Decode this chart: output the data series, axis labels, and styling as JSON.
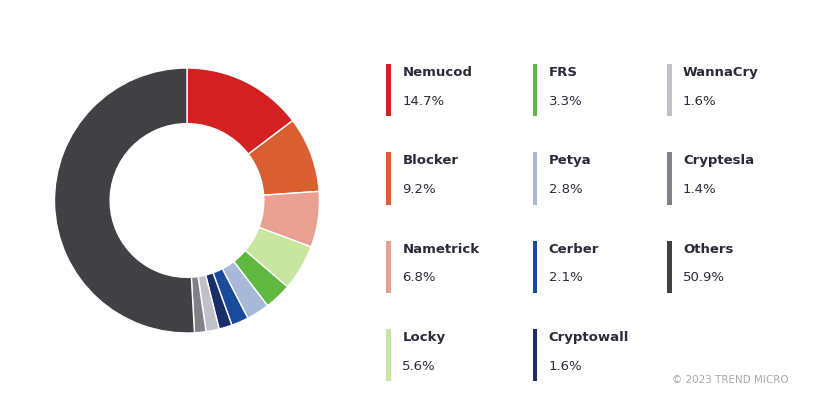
{
  "slices": [
    {
      "label": "Nemucod",
      "value": 14.7,
      "color": "#d42020"
    },
    {
      "label": "Blocker",
      "value": 9.2,
      "color": "#d95f30"
    },
    {
      "label": "Nametrick",
      "value": 6.8,
      "color": "#e8a090"
    },
    {
      "label": "Locky",
      "value": 5.6,
      "color": "#c8e6a0"
    },
    {
      "label": "FRS",
      "value": 3.3,
      "color": "#60b840"
    },
    {
      "label": "Petya",
      "value": 2.8,
      "color": "#a8b8d8"
    },
    {
      "label": "Cerber",
      "value": 2.1,
      "color": "#1a4a9c"
    },
    {
      "label": "Cryptowall",
      "value": 1.6,
      "color": "#1a2f6a"
    },
    {
      "label": "WannaCry",
      "value": 1.6,
      "color": "#c0c0c8"
    },
    {
      "label": "Cryptesla",
      "value": 1.4,
      "color": "#808088"
    },
    {
      "label": "Others",
      "value": 50.9,
      "color": "#404045"
    }
  ],
  "legend_layout": [
    [
      {
        "label": "Nemucod",
        "pct": "14.7%",
        "color": "#d42020"
      },
      {
        "label": "FRS",
        "pct": "3.3%",
        "color": "#60b840"
      },
      {
        "label": "WannaCry",
        "pct": "1.6%",
        "color": "#c0c0c8"
      }
    ],
    [
      {
        "label": "Blocker",
        "pct": "9.2%",
        "color": "#d95f30"
      },
      {
        "label": "Petya",
        "pct": "2.8%",
        "color": "#a8b8d8"
      },
      {
        "label": "Cryptesla",
        "pct": "1.4%",
        "color": "#808088"
      }
    ],
    [
      {
        "label": "Nametrick",
        "pct": "6.8%",
        "color": "#e8a090"
      },
      {
        "label": "Cerber",
        "pct": "2.1%",
        "color": "#1a4a9c"
      },
      {
        "label": "Others",
        "pct": "50.9%",
        "color": "#404045"
      }
    ],
    [
      {
        "label": "Locky",
        "pct": "5.6%",
        "color": "#c8e6a0"
      },
      {
        "label": "Cryptowall",
        "pct": "1.6%",
        "color": "#1a2f6a"
      },
      {
        "label": "",
        "pct": "",
        "color": null
      }
    ]
  ],
  "copyright": "© 2023 TREND MICRO",
  "background_color": "#ffffff",
  "start_angle": 90,
  "donut_width": 0.42,
  "text_color": "#2a2a3a",
  "pct_color": "#2a2a3a",
  "copyright_color": "#aaaaaa"
}
